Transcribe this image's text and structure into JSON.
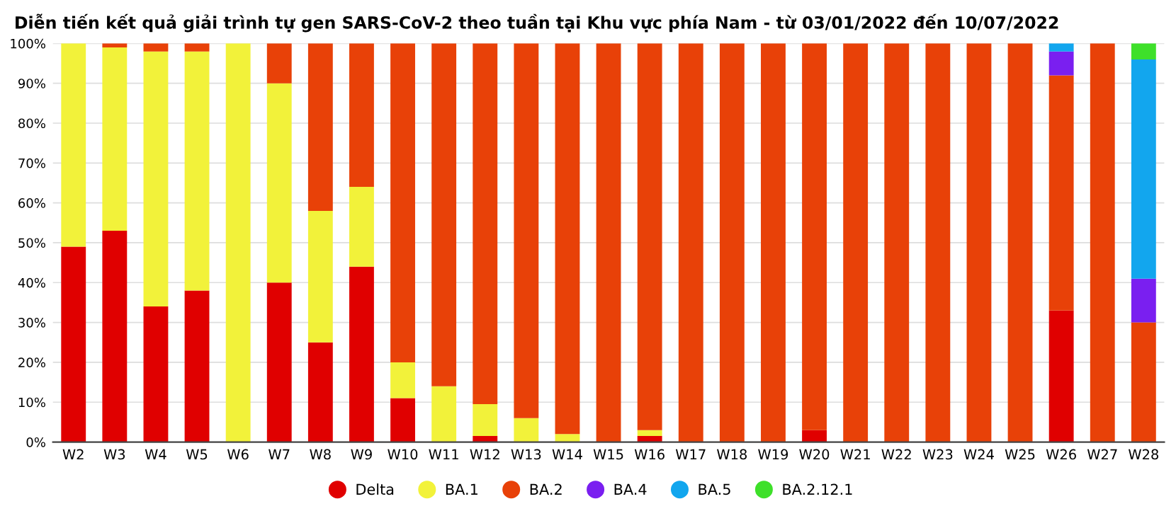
{
  "chart_data": {
    "type": "bar",
    "stacked": true,
    "title": "Diễn tiến kết quả giải trình tự gen SARS-CoV-2 theo tuần tại Khu vực phía Nam - từ 03/01/2022 đến 10/07/2022",
    "categories": [
      "W2",
      "W3",
      "W4",
      "W5",
      "W6",
      "W7",
      "W8",
      "W9",
      "W10",
      "W11",
      "W12",
      "W13",
      "W14",
      "W15",
      "W16",
      "W17",
      "W18",
      "W19",
      "W20",
      "W21",
      "W22",
      "W23",
      "W24",
      "W25",
      "W26",
      "W27",
      "W28"
    ],
    "series": [
      {
        "name": "Delta",
        "color": "#e00000",
        "values": [
          49,
          53,
          34,
          38,
          0,
          40,
          25,
          44,
          11,
          0,
          1.5,
          0,
          0,
          0,
          1.5,
          0,
          0,
          0,
          3,
          0,
          0,
          0,
          0,
          0,
          33,
          0,
          0
        ]
      },
      {
        "name": "BA.1",
        "color": "#f2f23a",
        "values": [
          51,
          46,
          64,
          60,
          100,
          50,
          33,
          20,
          9,
          14,
          8,
          6,
          2,
          0,
          1.5,
          0,
          0,
          0,
          0,
          0,
          0,
          0,
          0,
          0,
          0,
          0,
          0
        ]
      },
      {
        "name": "BA.2",
        "color": "#e84108",
        "values": [
          0,
          1,
          2,
          2,
          0,
          10,
          42,
          36,
          80,
          86,
          90.5,
          94,
          98,
          100,
          97,
          100,
          100,
          100,
          97,
          100,
          100,
          100,
          100,
          100,
          59,
          100,
          30
        ]
      },
      {
        "name": "BA.4",
        "color": "#7a1ff0",
        "values": [
          0,
          0,
          0,
          0,
          0,
          0,
          0,
          0,
          0,
          0,
          0,
          0,
          0,
          0,
          0,
          0,
          0,
          0,
          0,
          0,
          0,
          0,
          0,
          0,
          6,
          0,
          11
        ]
      },
      {
        "name": "BA.5",
        "color": "#12a6ee",
        "values": [
          0,
          0,
          0,
          0,
          0,
          0,
          0,
          0,
          0,
          0,
          0,
          0,
          0,
          0,
          0,
          0,
          0,
          0,
          0,
          0,
          0,
          0,
          0,
          0,
          2,
          0,
          55
        ]
      },
      {
        "name": "BA.2.12.1",
        "color": "#3ee02a",
        "values": [
          0,
          0,
          0,
          0,
          0,
          0,
          0,
          0,
          0,
          0,
          0,
          0,
          0,
          0,
          0,
          0,
          0,
          0,
          0,
          0,
          0,
          0,
          0,
          0,
          0,
          0,
          4
        ]
      }
    ],
    "ylim": [
      0,
      100
    ],
    "yticks": [
      {
        "value": 0,
        "label": "0%"
      },
      {
        "value": 10,
        "label": "10%"
      },
      {
        "value": 20,
        "label": "20%"
      },
      {
        "value": 30,
        "label": "30%"
      },
      {
        "value": 40,
        "label": "40%"
      },
      {
        "value": 50,
        "label": "50%"
      },
      {
        "value": 60,
        "label": "60%"
      },
      {
        "value": 70,
        "label": "70%"
      },
      {
        "value": 80,
        "label": "80%"
      },
      {
        "value": 90,
        "label": "90%"
      },
      {
        "value": 100,
        "label": "100%"
      }
    ],
    "grid": "y",
    "legend": "bottom"
  }
}
